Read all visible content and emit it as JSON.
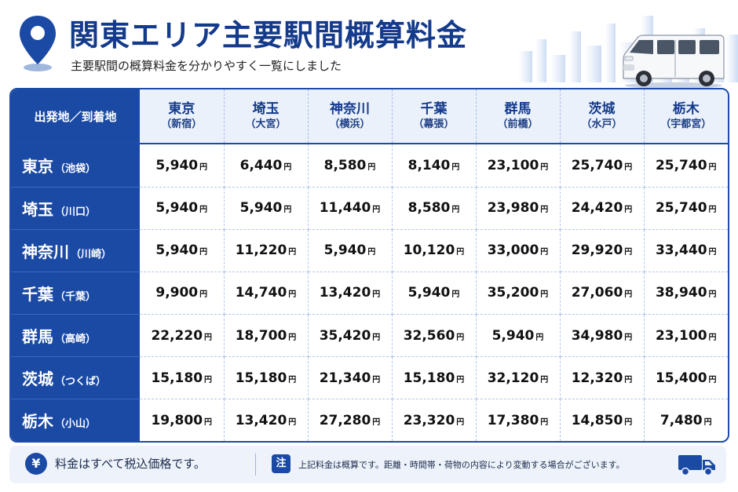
{
  "header": {
    "title": "関東エリア主要駅間概算料金",
    "subtitle": "主要駅間の概算料金を分かりやすく一覧にしました",
    "pin_icon": "location-pin-icon",
    "van_icon": "white-van-icon"
  },
  "table": {
    "corner_label": "出発地／到着地",
    "unit": "円",
    "destinations": [
      {
        "name": "東京",
        "sub": "（新宿）"
      },
      {
        "name": "埼玉",
        "sub": "（大宮）"
      },
      {
        "name": "神奈川",
        "sub": "（横浜）"
      },
      {
        "name": "千葉",
        "sub": "（幕張）"
      },
      {
        "name": "群馬",
        "sub": "（前橋）"
      },
      {
        "name": "茨城",
        "sub": "（水戸）"
      },
      {
        "name": "栃木",
        "sub": "（宇都宮）"
      }
    ],
    "rows": [
      {
        "name": "東京",
        "sub": "（池袋）",
        "values": [
          "5,940",
          "6,440",
          "8,580",
          "8,140",
          "23,100",
          "25,740",
          "25,740"
        ]
      },
      {
        "name": "埼玉",
        "sub": "（川口）",
        "values": [
          "5,940",
          "5,940",
          "11,440",
          "8,580",
          "23,980",
          "24,420",
          "25,740"
        ]
      },
      {
        "name": "神奈川",
        "sub": "（川崎）",
        "values": [
          "5,940",
          "11,220",
          "5,940",
          "10,120",
          "33,000",
          "29,920",
          "33,440"
        ]
      },
      {
        "name": "千葉",
        "sub": "（千葉）",
        "values": [
          "9,900",
          "14,740",
          "13,420",
          "5,940",
          "35,200",
          "27,060",
          "38,940"
        ]
      },
      {
        "name": "群馬",
        "sub": "（高崎）",
        "values": [
          "22,220",
          "18,700",
          "35,420",
          "32,560",
          "5,940",
          "34,980",
          "23,100"
        ]
      },
      {
        "name": "茨城",
        "sub": "（つくば）",
        "values": [
          "15,180",
          "15,180",
          "21,340",
          "15,180",
          "32,120",
          "12,320",
          "15,400"
        ]
      },
      {
        "name": "栃木",
        "sub": "（小山）",
        "values": [
          "19,800",
          "13,420",
          "27,280",
          "23,320",
          "17,380",
          "14,850",
          "7,480"
        ]
      }
    ]
  },
  "footer": {
    "yen_symbol": "¥",
    "tax_note": "料金はすべて税込価格です。",
    "note_label": "注",
    "disclaimer": "上記料金は概算です。距離・時間帯・荷物の内容により変動する場合がございます。",
    "truck_icon": "delivery-truck-icon"
  },
  "colors": {
    "primary": "#1b4aa5",
    "title": "#143a8c",
    "header_bg": "#eaf1fb",
    "footer_bg": "#eef3fb"
  }
}
